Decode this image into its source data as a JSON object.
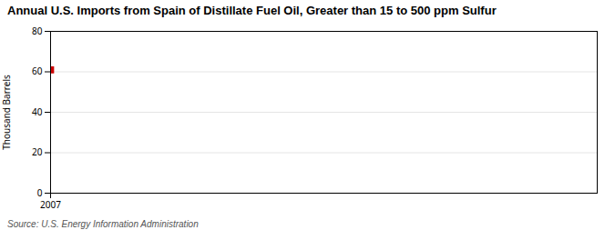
{
  "chart_data": {
    "type": "scatter",
    "title": "Annual U.S. Imports from Spain of Distillate Fuel Oil, Greater than 15 to 500 ppm Sulfur",
    "ylabel": "Thousand Barrels",
    "source": "Source: U.S. Energy Information Administration",
    "x": [
      2007
    ],
    "values": [
      61
    ],
    "color": "#cc0000",
    "marker": "square",
    "xlim": [
      2007,
      2016
    ],
    "ylim": [
      0,
      80
    ],
    "xticks": [
      2007
    ],
    "yticks": [
      0,
      20,
      40,
      60,
      80
    ],
    "grid": true
  }
}
